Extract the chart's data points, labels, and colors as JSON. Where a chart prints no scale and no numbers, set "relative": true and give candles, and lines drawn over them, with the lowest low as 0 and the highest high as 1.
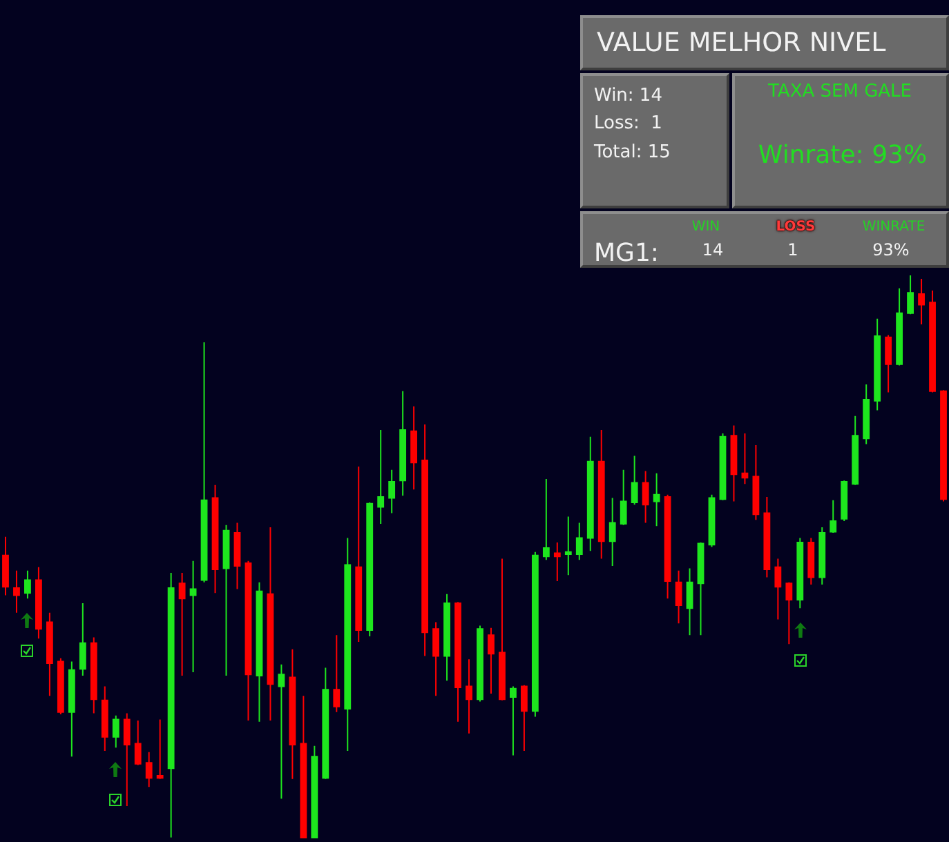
{
  "chart_data": [
    {
      "type": "candlestick",
      "relative": true,
      "categories": [
        null,
        null,
        null,
        null,
        null,
        null,
        null,
        null,
        null,
        null,
        null,
        null,
        null,
        null,
        null,
        null,
        null,
        null,
        null,
        null,
        null,
        null,
        null,
        null,
        null,
        null,
        null,
        null,
        null,
        null,
        null,
        null,
        null,
        null,
        null,
        null,
        null,
        null,
        null,
        null,
        null,
        null,
        null,
        null,
        null,
        null,
        null,
        null,
        null,
        null,
        null,
        null,
        null,
        null,
        null,
        null,
        null,
        null,
        null,
        null,
        null,
        null,
        null,
        null,
        null,
        null,
        null,
        null,
        null,
        null,
        null,
        null,
        null,
        null,
        null,
        null,
        null,
        null,
        null,
        null,
        null,
        null,
        null,
        null,
        null,
        null
      ],
      "ohlc": [
        [
          0.502,
          0.535,
          0.431,
          0.446
        ],
        [
          0.444,
          0.475,
          0.4,
          0.431
        ],
        [
          0.435,
          0.475,
          0.425,
          0.458
        ],
        [
          0.458,
          0.481,
          0.354,
          0.371
        ],
        [
          0.383,
          0.4,
          0.252,
          0.31
        ],
        [
          0.313,
          0.319,
          0.219,
          0.223
        ],
        [
          0.223,
          0.313,
          0.144,
          0.298
        ],
        [
          0.3,
          0.417,
          0.288,
          0.346
        ],
        [
          0.346,
          0.356,
          0.221,
          0.246
        ],
        [
          0.244,
          0.269,
          0.154,
          0.179
        ],
        [
          0.179,
          0.217,
          0.16,
          0.21
        ],
        [
          0.21,
          0.221,
          0.056,
          0.165
        ],
        [
          0.167,
          0.208,
          0.129,
          0.131
        ],
        [
          0.133,
          0.152,
          0.09,
          0.106
        ],
        [
          0.11,
          0.21,
          0.104,
          0.106
        ],
        [
          0.123,
          0.471,
          0.0,
          0.444
        ],
        [
          0.452,
          0.471,
          0.288,
          0.425
        ],
        [
          0.431,
          0.492,
          0.294,
          0.442
        ],
        [
          0.458,
          0.881,
          0.454,
          0.6
        ],
        [
          0.604,
          0.627,
          0.435,
          0.477
        ],
        [
          0.479,
          0.556,
          0.288,
          0.546
        ],
        [
          0.542,
          0.56,
          0.442,
          0.483
        ],
        [
          0.488,
          0.492,
          0.208,
          0.29
        ],
        [
          0.288,
          0.454,
          0.206,
          0.438
        ],
        [
          0.433,
          0.552,
          0.208,
          0.273
        ],
        [
          0.269,
          0.308,
          0.069,
          0.29
        ],
        [
          0.285,
          0.335,
          0.104,
          0.165
        ],
        [
          0.167,
          0.252,
          0.0,
          0.0
        ],
        [
          0.0,
          0.163,
          0.0,
          0.144
        ],
        [
          0.106,
          0.302,
          0.104,
          0.263
        ],
        [
          0.263,
          0.36,
          0.223,
          0.233
        ],
        [
          0.229,
          0.533,
          0.154,
          0.485
        ],
        [
          0.481,
          0.66,
          0.348,
          0.369
        ],
        [
          0.369,
          0.596,
          0.358,
          0.594
        ],
        [
          0.588,
          0.725,
          0.558,
          0.606
        ],
        [
          0.604,
          0.654,
          0.577,
          0.633
        ],
        [
          0.635,
          0.794,
          0.608,
          0.725
        ],
        [
          0.723,
          0.767,
          0.619,
          0.667
        ],
        [
          0.671,
          0.735,
          0.323,
          0.365
        ],
        [
          0.371,
          0.383,
          0.252,
          0.323
        ],
        [
          0.323,
          0.433,
          0.279,
          0.417
        ],
        [
          0.417,
          0.419,
          0.206,
          0.267
        ],
        [
          0.269,
          0.317,
          0.185,
          0.246
        ],
        [
          0.246,
          0.377,
          0.242,
          0.371
        ],
        [
          0.36,
          0.373,
          0.256,
          0.327
        ],
        [
          0.329,
          0.496,
          0.244,
          0.246
        ],
        [
          0.25,
          0.269,
          0.146,
          0.265
        ],
        [
          0.269,
          0.271,
          0.154,
          0.225
        ],
        [
          0.225,
          0.508,
          0.215,
          0.502
        ],
        [
          0.5,
          0.638,
          0.494,
          0.515
        ],
        [
          0.506,
          0.525,
          0.456,
          0.5
        ],
        [
          0.504,
          0.571,
          0.467,
          0.508
        ],
        [
          0.504,
          0.56,
          0.494,
          0.533
        ],
        [
          0.533,
          0.713,
          0.51,
          0.669
        ],
        [
          0.669,
          0.725,
          0.496,
          0.527
        ],
        [
          0.527,
          0.604,
          0.483,
          0.56
        ],
        [
          0.558,
          0.654,
          0.556,
          0.598
        ],
        [
          0.596,
          0.679,
          0.592,
          0.631
        ],
        [
          0.631,
          0.652,
          0.56,
          0.592
        ],
        [
          0.598,
          0.648,
          0.554,
          0.61
        ],
        [
          0.606,
          0.61,
          0.425,
          0.456
        ],
        [
          0.454,
          0.475,
          0.381,
          0.413
        ],
        [
          0.408,
          0.479,
          0.36,
          0.454
        ],
        [
          0.452,
          0.525,
          0.36,
          0.523
        ],
        [
          0.521,
          0.61,
          0.517,
          0.604
        ],
        [
          0.602,
          0.719,
          0.6,
          0.713
        ],
        [
          0.715,
          0.733,
          0.598,
          0.646
        ],
        [
          0.648,
          0.719,
          0.629,
          0.64
        ],
        [
          0.642,
          0.698,
          0.565,
          0.575
        ],
        [
          0.577,
          0.606,
          0.463,
          0.477
        ],
        [
          0.481,
          0.496,
          0.388,
          0.446
        ],
        [
          0.452,
          0.454,
          0.344,
          0.423
        ],
        [
          0.423,
          0.533,
          0.408,
          0.525
        ],
        [
          0.525,
          0.533,
          0.45,
          0.463
        ],
        [
          0.463,
          0.552,
          0.45,
          0.542
        ],
        [
          0.544,
          0.6,
          0.542,
          0.563
        ],
        [
          0.567,
          0.635,
          0.563,
          0.633
        ],
        [
          0.629,
          0.75,
          0.627,
          0.715
        ],
        [
          0.71,
          0.806,
          0.7,
          0.779
        ],
        [
          0.777,
          0.923,
          0.76,
          0.892
        ],
        [
          0.89,
          0.894,
          0.792,
          0.842
        ],
        [
          0.842,
          0.977,
          0.84,
          0.933
        ],
        [
          0.933,
          1.0,
          0.931,
          0.969
        ],
        [
          0.967,
          0.994,
          0.913,
          0.948
        ],
        [
          0.952,
          0.973,
          0.792,
          0.794
        ],
        [
          0.794,
          0.796,
          0.598,
          0.602
        ]
      ],
      "colors": [
        "#ff0000",
        "#ff0000",
        "#1ee61e",
        "#ff0000",
        "#ff0000",
        "#ff0000",
        "#1ee61e",
        "#1ee61e",
        "#ff0000",
        "#ff0000",
        "#1ee61e",
        "#ff0000",
        "#ff0000",
        "#ff0000",
        "#ff0000",
        "#1ee61e",
        "#ff0000",
        "#1ee61e",
        "#1ee61e",
        "#ff0000",
        "#1ee61e",
        "#ff0000",
        "#ff0000",
        "#1ee61e",
        "#ff0000",
        "#1ee61e",
        "#ff0000",
        "#ff0000",
        "#1ee61e",
        "#1ee61e",
        "#ff0000",
        "#1ee61e",
        "#ff0000",
        "#1ee61e",
        "#1ee61e",
        "#1ee61e",
        "#1ee61e",
        "#ff0000",
        "#ff0000",
        "#ff0000",
        "#1ee61e",
        "#ff0000",
        "#ff0000",
        "#1ee61e",
        "#ff0000",
        "#ff0000",
        "#1ee61e",
        "#ff0000",
        "#1ee61e",
        "#1ee61e",
        "#ff0000",
        "#1ee61e",
        "#1ee61e",
        "#1ee61e",
        "#ff0000",
        "#1ee61e",
        "#1ee61e",
        "#1ee61e",
        "#ff0000",
        "#1ee61e",
        "#ff0000",
        "#ff0000",
        "#1ee61e",
        "#1ee61e",
        "#1ee61e",
        "#1ee61e",
        "#ff0000",
        "#ff0000",
        "#ff0000",
        "#ff0000",
        "#ff0000",
        "#ff0000",
        "#1ee61e",
        "#ff0000",
        "#1ee61e",
        "#1ee61e",
        "#1ee61e",
        "#1ee61e",
        "#1ee61e",
        "#1ee61e",
        "#ff0000",
        "#1ee61e",
        "#1ee61e",
        "#ff0000",
        "#ff0000",
        "#ff0000"
      ]
    },
    {
      "type": "other",
      "title": "VALUE MELHOR NIVEL",
      "annotations": [
        "Win: 14",
        "Loss:  1",
        "Total: 15",
        "TAXA SEM GALE",
        "Winrate: 93%",
        "MG1:",
        "WIN",
        "LOSS",
        "WINRATE",
        "14",
        "1",
        "93%"
      ]
    }
  ]
}
